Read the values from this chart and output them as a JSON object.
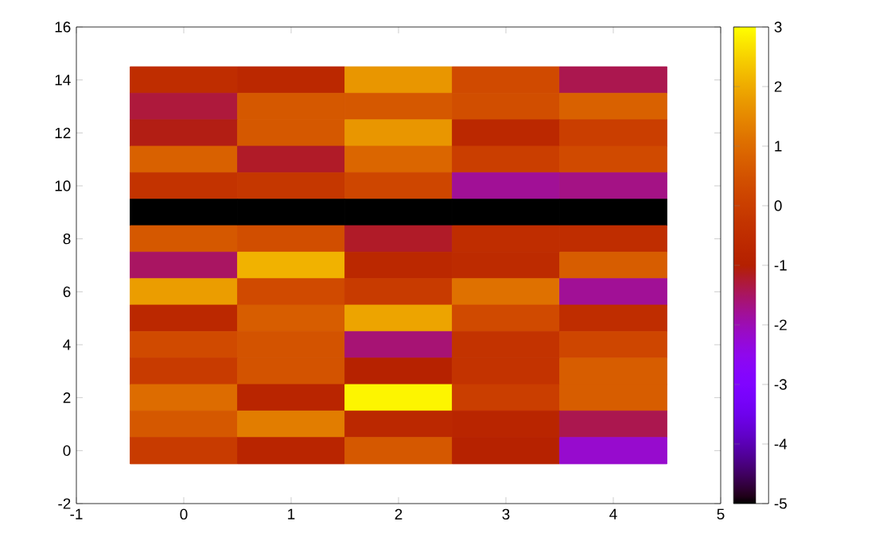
{
  "chart_data": {
    "type": "heatmap",
    "x": [
      0,
      1,
      2,
      3,
      4
    ],
    "y": [
      14,
      13,
      12,
      11,
      10,
      9,
      8,
      7,
      6,
      5,
      4,
      3,
      2,
      1,
      0
    ],
    "cells": [
      [
        -0.5,
        -0.7,
        1.7,
        0.3,
        -1.4
      ],
      [
        -1.3,
        0.6,
        0.6,
        0.4,
        0.8
      ],
      [
        -1.1,
        0.6,
        1.7,
        -0.7,
        0.0
      ],
      [
        0.8,
        -1.2,
        0.9,
        0.0,
        0.3
      ],
      [
        -0.3,
        -0.2,
        0.2,
        -1.8,
        -1.7
      ],
      [
        -5,
        -5,
        -5,
        -5,
        -5
      ],
      [
        0.6,
        0.4,
        -1.2,
        -0.5,
        -0.5
      ],
      [
        -1.5,
        2.1,
        -0.7,
        -0.6,
        0.7
      ],
      [
        1.8,
        0.3,
        -0.1,
        1.1,
        -1.8
      ],
      [
        -0.7,
        0.7,
        1.9,
        0.3,
        -0.5
      ],
      [
        0.3,
        0.5,
        -1.6,
        -0.3,
        0.2
      ],
      [
        -0.1,
        0.5,
        -0.9,
        -0.3,
        0.7
      ],
      [
        1.0,
        -0.8,
        2.9,
        0.0,
        0.7
      ],
      [
        0.6,
        1.3,
        -0.7,
        -0.8,
        -1.4
      ],
      [
        -0.1,
        -0.8,
        0.6,
        -0.9,
        -2.2
      ]
    ],
    "xlim": [
      -1,
      5
    ],
    "xticks": [
      -1,
      0,
      1,
      2,
      3,
      4,
      5
    ],
    "ylim": [
      -2,
      16
    ],
    "yticks": [
      -2,
      0,
      2,
      4,
      6,
      8,
      10,
      12,
      14,
      16
    ],
    "clim": [
      -5,
      3
    ],
    "cticks": [
      -5,
      -4,
      -3,
      -2,
      -1,
      0,
      1,
      2,
      3
    ]
  }
}
